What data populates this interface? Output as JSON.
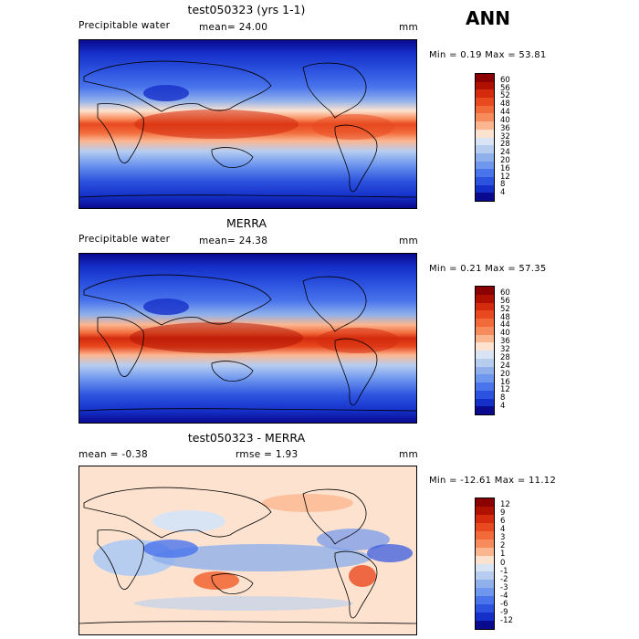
{
  "season": "ANN",
  "panels": [
    {
      "title": "test050323 (yrs 1-1)",
      "left_label": "Precipitable water",
      "center_label": "mean=   24.00",
      "units": "mm",
      "minmax": "Min =    0.19  Max =  53.81",
      "colorbar_labels": [
        "60",
        "56",
        "52",
        "48",
        "44",
        "40",
        "36",
        "32",
        "28",
        "24",
        "20",
        "16",
        "12",
        "8",
        "4"
      ],
      "colors": [
        "#8b0000",
        "#b01000",
        "#d42a0e",
        "#e8491f",
        "#f26a3a",
        "#f78b5c",
        "#fbb690",
        "#fde3cf",
        "#d8e4f4",
        "#b7cdf0",
        "#8fb0eb",
        "#6f97ee",
        "#4a74ec",
        "#2c52df",
        "#1530c9",
        "#0a0a8f"
      ]
    },
    {
      "title": "MERRA",
      "left_label": "Precipitable water",
      "center_label": "mean=   24.38",
      "units": "mm",
      "minmax": "Min =    0.21  Max =  57.35",
      "colorbar_labels": [
        "60",
        "56",
        "52",
        "48",
        "44",
        "40",
        "36",
        "32",
        "28",
        "24",
        "20",
        "16",
        "12",
        "8",
        "4"
      ],
      "colors": [
        "#8b0000",
        "#b01000",
        "#d42a0e",
        "#e8491f",
        "#f26a3a",
        "#f78b5c",
        "#fbb690",
        "#fde3cf",
        "#d8e4f4",
        "#b7cdf0",
        "#8fb0eb",
        "#6f97ee",
        "#4a74ec",
        "#2c52df",
        "#1530c9",
        "#0a0a8f"
      ]
    },
    {
      "title": "test050323 - MERRA",
      "left_label": "mean =   -0.38",
      "center_label": "rmse =    1.93",
      "units": "mm",
      "minmax": "Min = -12.61  Max =   11.12",
      "colorbar_labels": [
        "12",
        "9",
        "6",
        "4",
        "3",
        "2",
        "1",
        "0",
        "-1",
        "-2",
        "-3",
        "-4",
        "-6",
        "-9",
        "-12"
      ],
      "colors": [
        "#8b0000",
        "#b01000",
        "#d42a0e",
        "#e8491f",
        "#f26a3a",
        "#f78b5c",
        "#fbb690",
        "#fde3cf",
        "#d8e4f4",
        "#b7cdf0",
        "#8fb0eb",
        "#6f97ee",
        "#4a74ec",
        "#2c52df",
        "#1530c9",
        "#0a0a8f"
      ]
    }
  ]
}
